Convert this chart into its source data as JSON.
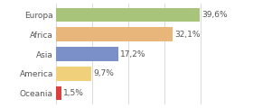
{
  "categories": [
    "Europa",
    "Africa",
    "Asia",
    "America",
    "Oceania"
  ],
  "values": [
    39.6,
    32.1,
    17.2,
    9.7,
    1.5
  ],
  "labels": [
    "39,6%",
    "32,1%",
    "17,2%",
    "9,7%",
    "1,5%"
  ],
  "bar_colors": [
    "#a8c47a",
    "#e8b57a",
    "#7b8fc8",
    "#f0d07a",
    "#d94040"
  ],
  "background_color": "#ffffff",
  "xlim": [
    0,
    46
  ],
  "label_fontsize": 6.5,
  "tick_fontsize": 6.5
}
